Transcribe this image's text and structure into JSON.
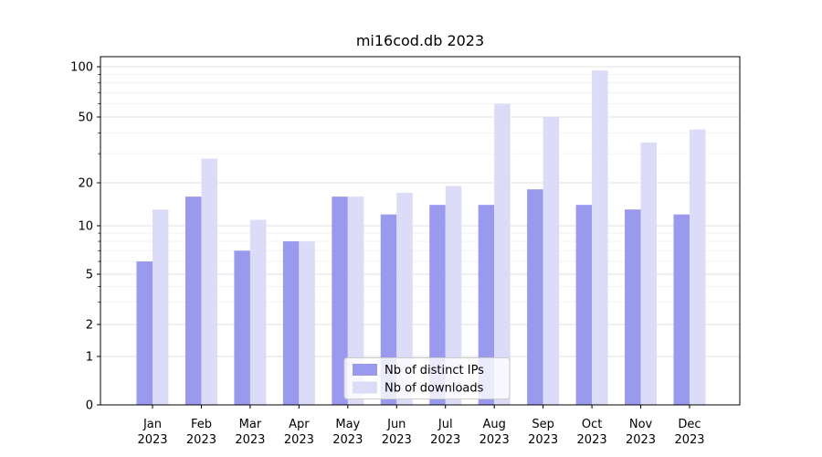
{
  "title": "mi16cod.db 2023",
  "chart_data": {
    "type": "bar",
    "title": "mi16cod.db 2023",
    "categories": [
      "Jan",
      "Feb",
      "Mar",
      "Apr",
      "May",
      "Jun",
      "Jul",
      "Aug",
      "Sep",
      "Oct",
      "Nov",
      "Dec"
    ],
    "year": "2023",
    "series": [
      {
        "name": "Nb of distinct IPs",
        "color": "#9999ee",
        "values": [
          6,
          16,
          7,
          8,
          16,
          12,
          14,
          14,
          18,
          14,
          13,
          12
        ]
      },
      {
        "name": "Nb of downloads",
        "color": "#dcdcf8",
        "values": [
          13,
          28,
          11,
          8,
          16,
          17,
          19,
          60,
          50,
          95,
          35,
          42
        ]
      }
    ],
    "yscale": "symlog",
    "yticks": [
      0,
      1,
      2,
      5,
      10,
      20,
      50,
      100
    ],
    "minor_yticks": [
      3,
      4,
      6,
      7,
      8,
      9,
      30,
      40,
      60,
      70,
      80,
      90
    ],
    "ylim": [
      0,
      100
    ],
    "xlabel": "",
    "ylabel": "",
    "grid": true,
    "legend_position": "lower center"
  },
  "colors": {
    "grid_major": "#e0e0e0",
    "grid_minor": "#f0f0f0",
    "axis": "#000000",
    "background": "#ffffff",
    "legend_border": "#cccccc",
    "legend_bg": "#ffffff"
  }
}
